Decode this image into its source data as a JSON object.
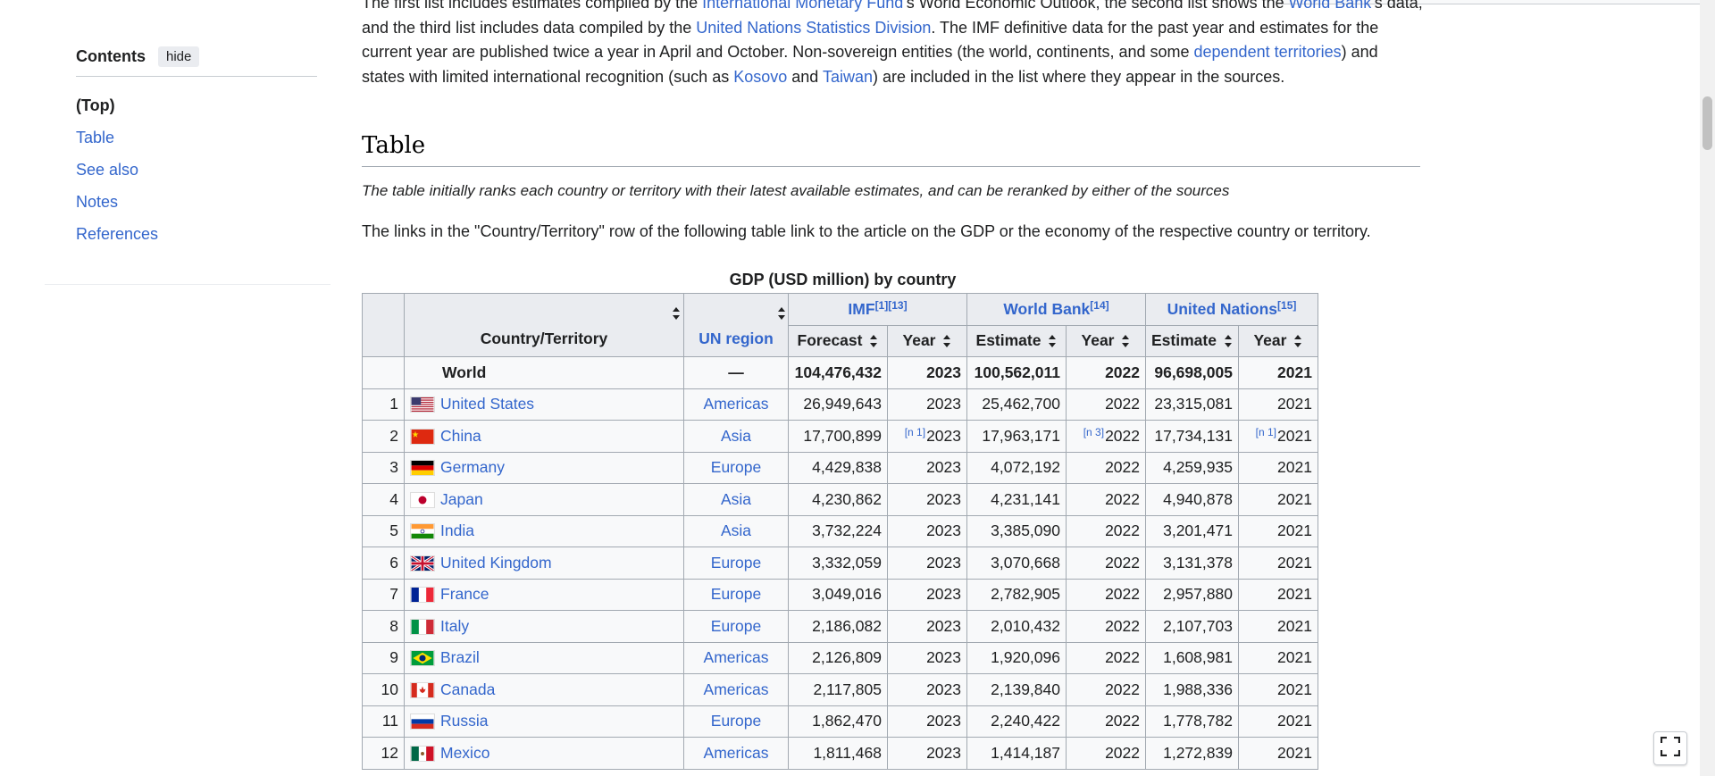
{
  "toc": {
    "title": "Contents",
    "hide_label": "hide",
    "items": [
      "(Top)",
      "Table",
      "See also",
      "Notes",
      "References"
    ]
  },
  "intro": {
    "line1_pre": "The first list includes estimates compiled by the ",
    "imf_link": "International Monetary Fund",
    "mid1": "'s World Economic Outlook, the second list shows the ",
    "wb_link": "World Bank",
    "mid2": "'s data, and the third list includes data compiled by the ",
    "un_link": "United Nations Statistics Division",
    "mid3": ". The IMF definitive data for the past year and estimates for the current year are published twice a year in April and October. Non-sovereign entities (the world, continents, and some ",
    "dep_link": "dependent territories",
    "mid4": ") and states with limited international recognition (such as ",
    "kosovo_link": "Kosovo",
    "and": " and ",
    "taiwan_link": "Taiwan",
    "end": ") are included in the list where they appear in the sources."
  },
  "section_heading": "Table",
  "hatnote": "The table initially ranks each country or territory with their latest available estimates, and can be reranked by either of the sources",
  "paragraph2": "The links in the \"Country/Territory\" row of the following table link to the article on the GDP or the economy of the respective country or territory.",
  "table": {
    "caption": "GDP (USD million) by country",
    "headers": {
      "country": "Country/Territory",
      "region": "UN region",
      "imf": "IMF",
      "imf_refs": "[1][13]",
      "wb": "World Bank",
      "wb_refs": "[14]",
      "un": "United Nations",
      "un_refs": "[15]",
      "forecast": "Forecast",
      "estimate": "Estimate",
      "year": "Year"
    },
    "world": {
      "name": "World",
      "region": "—",
      "imf": "104,476,432",
      "imf_year": "2023",
      "wb": "100,562,011",
      "wb_year": "2022",
      "un": "96,698,005",
      "un_year": "2021"
    },
    "rows": [
      {
        "rank": "1",
        "name": "United States",
        "flag": "us",
        "region": "Americas",
        "imf": "26,949,643",
        "imf_year": "2023",
        "wb": "25,462,700",
        "wb_year": "2022",
        "un": "23,315,081",
        "un_year": "2021",
        "imf_note": "",
        "wb_note": "",
        "un_note": ""
      },
      {
        "rank": "2",
        "name": "China",
        "flag": "cn",
        "region": "Asia",
        "imf": "17,700,899",
        "imf_year": "2023",
        "wb": "17,963,171",
        "wb_year": "2022",
        "un": "17,734,131",
        "un_year": "2021",
        "imf_note": "[n 1]",
        "wb_note": "[n 3]",
        "un_note": "[n 1]"
      },
      {
        "rank": "3",
        "name": "Germany",
        "flag": "de",
        "region": "Europe",
        "imf": "4,429,838",
        "imf_year": "2023",
        "wb": "4,072,192",
        "wb_year": "2022",
        "un": "4,259,935",
        "un_year": "2021",
        "imf_note": "",
        "wb_note": "",
        "un_note": ""
      },
      {
        "rank": "4",
        "name": "Japan",
        "flag": "jp",
        "region": "Asia",
        "imf": "4,230,862",
        "imf_year": "2023",
        "wb": "4,231,141",
        "wb_year": "2022",
        "un": "4,940,878",
        "un_year": "2021",
        "imf_note": "",
        "wb_note": "",
        "un_note": ""
      },
      {
        "rank": "5",
        "name": "India",
        "flag": "in",
        "region": "Asia",
        "imf": "3,732,224",
        "imf_year": "2023",
        "wb": "3,385,090",
        "wb_year": "2022",
        "un": "3,201,471",
        "un_year": "2021",
        "imf_note": "",
        "wb_note": "",
        "un_note": ""
      },
      {
        "rank": "6",
        "name": "United Kingdom",
        "flag": "gb",
        "region": "Europe",
        "imf": "3,332,059",
        "imf_year": "2023",
        "wb": "3,070,668",
        "wb_year": "2022",
        "un": "3,131,378",
        "un_year": "2021",
        "imf_note": "",
        "wb_note": "",
        "un_note": ""
      },
      {
        "rank": "7",
        "name": "France",
        "flag": "fr",
        "region": "Europe",
        "imf": "3,049,016",
        "imf_year": "2023",
        "wb": "2,782,905",
        "wb_year": "2022",
        "un": "2,957,880",
        "un_year": "2021",
        "imf_note": "",
        "wb_note": "",
        "un_note": ""
      },
      {
        "rank": "8",
        "name": "Italy",
        "flag": "it",
        "region": "Europe",
        "imf": "2,186,082",
        "imf_year": "2023",
        "wb": "2,010,432",
        "wb_year": "2022",
        "un": "2,107,703",
        "un_year": "2021",
        "imf_note": "",
        "wb_note": "",
        "un_note": ""
      },
      {
        "rank": "9",
        "name": "Brazil",
        "flag": "br",
        "region": "Americas",
        "imf": "2,126,809",
        "imf_year": "2023",
        "wb": "1,920,096",
        "wb_year": "2022",
        "un": "1,608,981",
        "un_year": "2021",
        "imf_note": "",
        "wb_note": "",
        "un_note": ""
      },
      {
        "rank": "10",
        "name": "Canada",
        "flag": "ca",
        "region": "Americas",
        "imf": "2,117,805",
        "imf_year": "2023",
        "wb": "2,139,840",
        "wb_year": "2022",
        "un": "1,988,336",
        "un_year": "2021",
        "imf_note": "",
        "wb_note": "",
        "un_note": ""
      },
      {
        "rank": "11",
        "name": "Russia",
        "flag": "ru",
        "region": "Europe",
        "imf": "1,862,470",
        "imf_year": "2023",
        "wb": "2,240,422",
        "wb_year": "2022",
        "un": "1,778,782",
        "un_year": "2021",
        "imf_note": "",
        "wb_note": "",
        "un_note": ""
      },
      {
        "rank": "12",
        "name": "Mexico",
        "flag": "mx",
        "region": "Americas",
        "imf": "1,811,468",
        "imf_year": "2023",
        "wb": "1,414,187",
        "wb_year": "2022",
        "un": "1,272,839",
        "un_year": "2021",
        "imf_note": "",
        "wb_note": "",
        "un_note": ""
      }
    ]
  },
  "colors": {
    "link": "#3366cc",
    "header_bg": "#eaecf0",
    "border": "#a2a9b1"
  }
}
